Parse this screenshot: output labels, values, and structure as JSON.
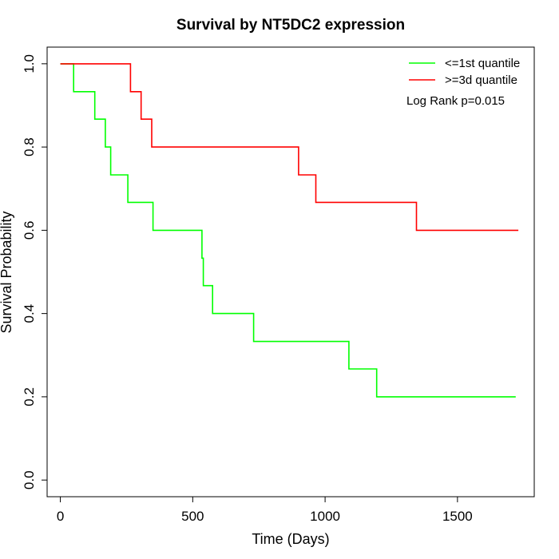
{
  "chart_data": {
    "type": "line",
    "title": "Survival by NT5DC2 expression",
    "xlabel": "Time (Days)",
    "ylabel": "Survival Probability",
    "xlim": [
      -50,
      1790
    ],
    "ylim": [
      -0.04,
      1.04
    ],
    "x_ticks": [
      0,
      500,
      1000,
      1500
    ],
    "x_tick_labels": [
      "0",
      "500",
      "1000",
      "1500"
    ],
    "y_ticks": [
      0.0,
      0.2,
      0.4,
      0.6,
      0.8,
      1.0
    ],
    "y_tick_labels": [
      "0.0",
      "0.2",
      "0.4",
      "0.6",
      "0.8",
      "1.0"
    ],
    "grid": false,
    "legend_position": "top-right",
    "annotation": "Log Rank p=0.015",
    "series": [
      {
        "name": "<=1st quantile",
        "color": "#00ff00",
        "step": true,
        "x": [
          0,
          50,
          130,
          170,
          190,
          255,
          350,
          535,
          540,
          575,
          730,
          1090,
          1195,
          1720
        ],
        "y": [
          1.0,
          0.933,
          0.867,
          0.8,
          0.733,
          0.667,
          0.6,
          0.533,
          0.467,
          0.4,
          0.333,
          0.267,
          0.2,
          0.2
        ]
      },
      {
        "name": ">=3d quantile",
        "color": "#ff0000",
        "step": true,
        "x": [
          0,
          265,
          305,
          345,
          900,
          965,
          1345,
          1730
        ],
        "y": [
          1.0,
          0.933,
          0.867,
          0.8,
          0.733,
          0.667,
          0.6,
          0.6
        ]
      }
    ]
  }
}
